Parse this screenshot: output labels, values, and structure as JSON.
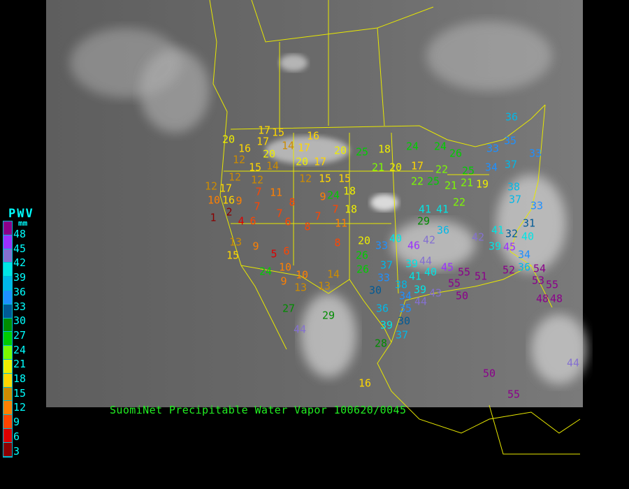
{
  "caption": "SuomiNet Precipitable Water Vapor 100620/0045",
  "legend": {
    "title": "PWV",
    "unit": "mm",
    "labels": [
      "48",
      "45",
      "42",
      "39",
      "36",
      "33",
      "30",
      "27",
      "24",
      "21",
      "18",
      "15",
      "12",
      "9",
      "6",
      "3"
    ],
    "colors": [
      "#8b008b",
      "#9b30ff",
      "#8470d0",
      "#00e5e5",
      "#00b8e8",
      "#1e90ff",
      "#005a96",
      "#008c00",
      "#00cd00",
      "#7cfc00",
      "#eeee00",
      "#ffd700",
      "#cd8c00",
      "#ff8000",
      "#ff4500",
      "#dd0000",
      "#8b0000"
    ]
  },
  "colors": {
    "border": "#e8e800",
    "land_gray": "#6c6c6c",
    "caption": "#22ee22"
  },
  "stations": [
    "20",
    "16",
    "17",
    "15",
    "17",
    "20",
    "14",
    "17",
    "16",
    "20",
    "25",
    "18",
    "24",
    "21",
    "20",
    "17",
    "22",
    "22",
    "25",
    "21",
    "19",
    "12",
    "15",
    "14",
    "20",
    "17",
    "12",
    "15",
    "15",
    "18",
    "24",
    "12",
    "17",
    "12",
    "12",
    "7",
    "11",
    "8",
    "10",
    "16",
    "9",
    "2",
    "7",
    "7",
    "6",
    "9",
    "7",
    "18",
    "1",
    "4",
    "6",
    "8",
    "7",
    "11",
    "13",
    "15",
    "9",
    "5",
    "6",
    "8",
    "20",
    "26",
    "33",
    "40",
    "37",
    "26",
    "33",
    "30",
    "46",
    "42",
    "39",
    "44",
    "41",
    "40",
    "38",
    "39",
    "34",
    "43",
    "45",
    "55",
    "55",
    "50",
    "51",
    "44",
    "24",
    "10",
    "9",
    "10",
    "13",
    "13",
    "14",
    "27",
    "29",
    "36",
    "35",
    "39",
    "30",
    "37",
    "28",
    "44",
    "16",
    "50",
    "36",
    "35",
    "33",
    "33",
    "34",
    "37",
    "38",
    "37",
    "33",
    "31",
    "32",
    "41",
    "45",
    "40",
    "39",
    "34",
    "36",
    "52",
    "54",
    "53",
    "48",
    "48",
    "55",
    "36",
    "42",
    "41",
    "29",
    "41",
    "22",
    "21",
    "24",
    "26",
    "25",
    "44",
    "55"
  ]
}
